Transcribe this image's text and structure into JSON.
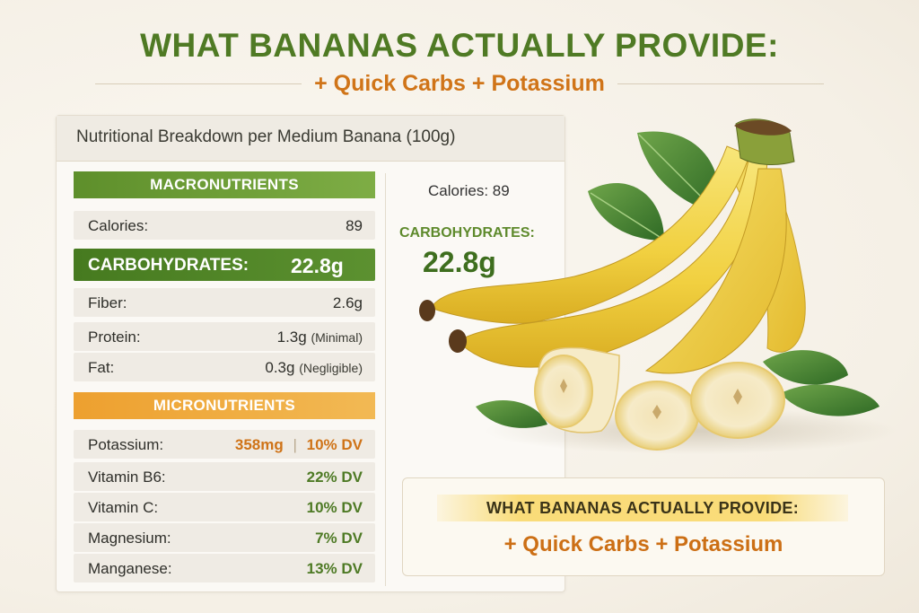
{
  "header": {
    "title": "WHAT BANANAS ACTUALLY PROVIDE:",
    "subtitle": "+ Quick Carbs + Potassium"
  },
  "card": {
    "header": "Nutritional Breakdown per Medium Banana (100g)",
    "macro_title": "MACRONUTRIENTS",
    "macros": [
      {
        "label": "Calories:",
        "value": "89",
        "note": ""
      },
      {
        "label": "CARBOHYDRATES:",
        "value": "22.8g",
        "note": ""
      },
      {
        "label": "Fiber:",
        "value": "2.6g",
        "note": ""
      },
      {
        "label": "Protein:",
        "value": "1.3g",
        "note": "(Minimal)"
      },
      {
        "label": "Fat:",
        "value": "0.3g",
        "note": "(Negligible)"
      }
    ],
    "micro_title": "MICRONUTRIENTS",
    "micros": [
      {
        "label": "Potassium:",
        "amount": "358mg",
        "sep": "|",
        "value": "10% DV"
      },
      {
        "label": "Vitamin B6:",
        "value": "22% DV"
      },
      {
        "label": "Vitamin C:",
        "value": "10% DV"
      },
      {
        "label": "Magnesium:",
        "value": "7% DV"
      },
      {
        "label": "Manganese:",
        "value": "13% DV"
      }
    ],
    "side": {
      "calories": "Calories: 89",
      "carb_label": "CARBOHYDRATES:",
      "carb_value": "22.8g"
    }
  },
  "callout": {
    "title": "WHAT BANANAS ACTUALLY PROVIDE:",
    "subtitle": "+ Quick Carbs + Potassium"
  },
  "colors": {
    "green_title": "#4f7a24",
    "orange_accent": "#d07418",
    "macro_bar": "#5e8f2b",
    "micro_bar": "#eda02f",
    "banana_yellow": "#f3d64a"
  },
  "illustration": {
    "subject": "banana-bunch-with-slices-and-leaves"
  }
}
